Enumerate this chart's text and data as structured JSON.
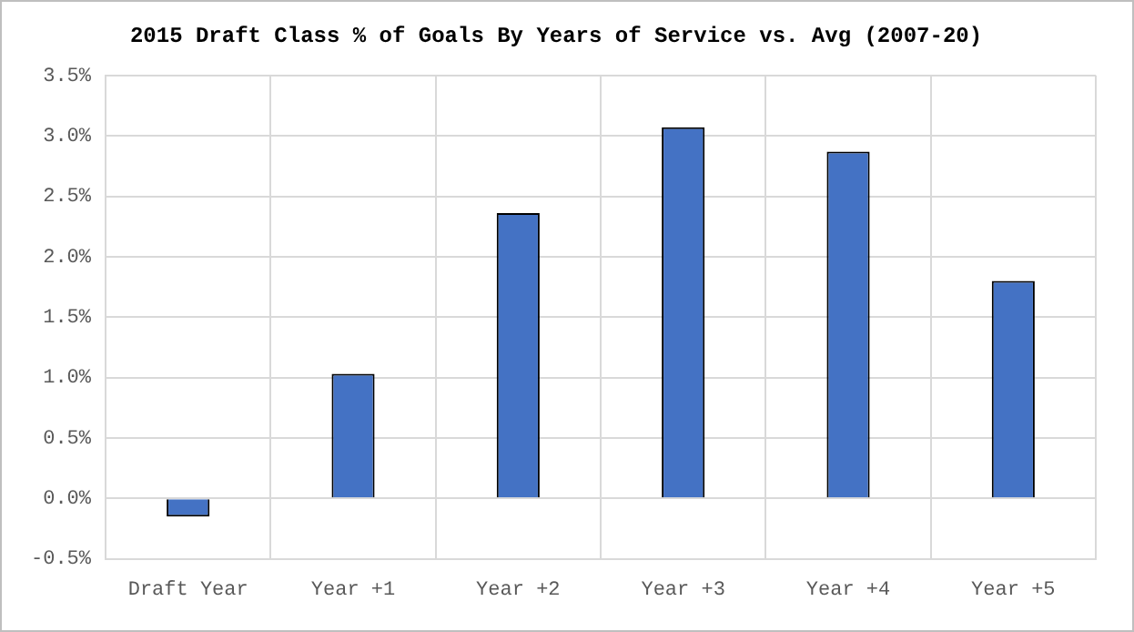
{
  "chart_data": {
    "type": "bar",
    "title": "2015 Draft Class % of Goals By Years of Service vs. Avg (2007-20)",
    "categories": [
      "Draft Year",
      "Year +1",
      "Year +2",
      "Year +3",
      "Year +4",
      "Year +5"
    ],
    "values": [
      -0.15,
      1.03,
      2.36,
      3.07,
      2.87,
      1.8
    ],
    "color": "#4472c4",
    "ylim": [
      -0.5,
      3.5
    ],
    "yticks": [
      {
        "value": -0.5,
        "label": "-0.5%"
      },
      {
        "value": 0,
        "label": "0.0%"
      },
      {
        "value": 0.5,
        "label": "0.5%"
      },
      {
        "value": 1,
        "label": "1.0%"
      },
      {
        "value": 1.5,
        "label": "1.5%"
      },
      {
        "value": 2,
        "label": "2.0%"
      },
      {
        "value": 2.5,
        "label": "2.5%"
      },
      {
        "value": 3,
        "label": "3.0%"
      },
      {
        "value": 3.5,
        "label": "3.5%"
      }
    ],
    "grid": true,
    "legend": false
  }
}
